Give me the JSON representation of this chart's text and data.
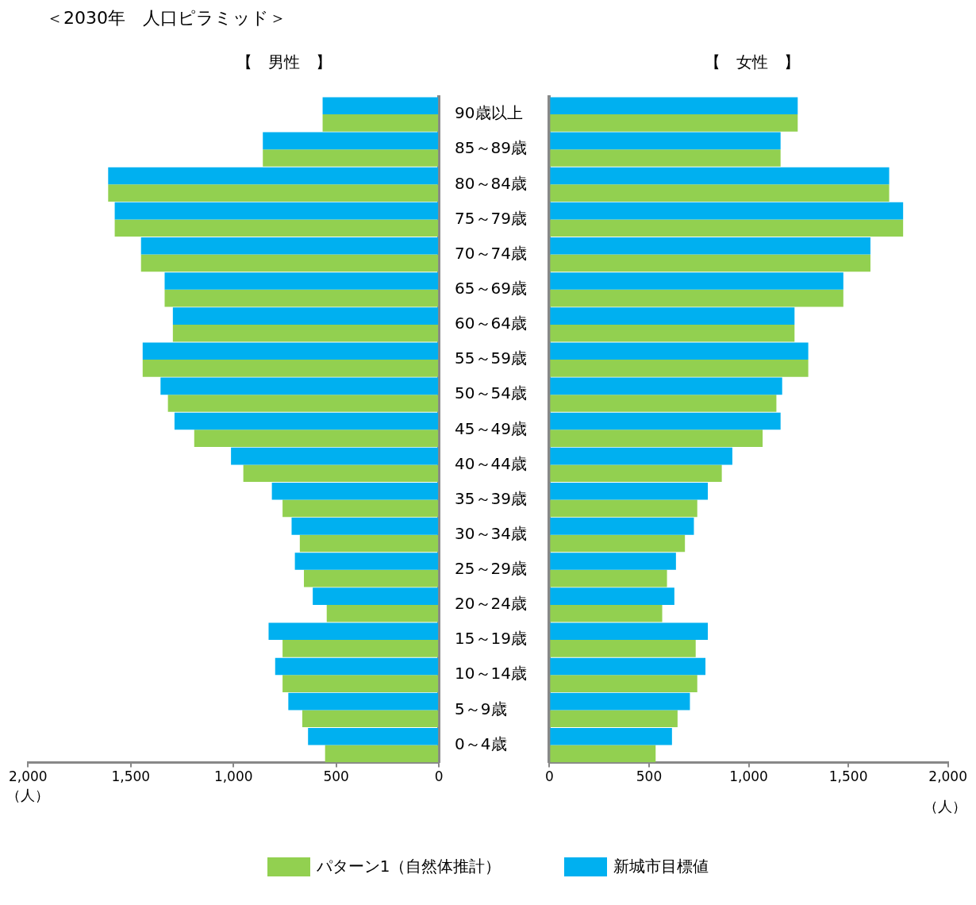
{
  "chart_data": [
    {
      "type": "bar",
      "orientation": "horizontal",
      "title": "【　男性　】",
      "xlabel": "（人）",
      "annotations": [
        "＜2030年　人口ピラミッド＞"
      ],
      "categories": [
        "90歳以上",
        "85～89歳",
        "80～84歳",
        "75～79歳",
        "70～74歳",
        "65～69歳",
        "60～64歳",
        "55～59歳",
        "50～54歳",
        "45～49歳",
        "40～44歳",
        "35～39歳",
        "30～34歳",
        "25～29歳",
        "20～24歳",
        "15～19歳",
        "10～14歳",
        "5～9歳",
        "0～4歳"
      ],
      "series": [
        {
          "name": "パターン1（自然体推計）",
          "color": "#92d050",
          "values": [
            566,
            857,
            1610,
            1578,
            1450,
            1335,
            1295,
            1442,
            1319,
            1191,
            952,
            761,
            677,
            657,
            546,
            761,
            761,
            665,
            554
          ]
        },
        {
          "name": "新城市目標値",
          "color": "#00b0f0",
          "values": [
            566,
            857,
            1610,
            1578,
            1450,
            1335,
            1295,
            1442,
            1355,
            1287,
            1012,
            813,
            717,
            701,
            614,
            829,
            797,
            733,
            637
          ]
        }
      ],
      "xlim": [
        2000,
        0
      ],
      "xticks": [
        {
          "value": 2000,
          "label": "2,000"
        },
        {
          "value": 1500,
          "label": "1,500"
        },
        {
          "value": 1000,
          "label": "1,000"
        },
        {
          "value": 500,
          "label": "500"
        },
        {
          "value": 0,
          "label": "0"
        }
      ],
      "grid": false,
      "legend": "bottom"
    },
    {
      "type": "bar",
      "orientation": "horizontal",
      "title": "【　女性　】",
      "xlabel": "（人）",
      "categories": [
        null,
        null,
        null,
        null,
        null,
        null,
        null,
        null,
        null,
        null,
        null,
        null,
        null,
        null,
        null,
        null,
        null,
        null,
        null
      ],
      "series": [
        {
          "color": "#92d050",
          "values": [
            1246,
            1160,
            1705,
            1775,
            1611,
            1475,
            1230,
            1299,
            1139,
            1070,
            865,
            742,
            680,
            590,
            566,
            734,
            742,
            643,
            533
          ]
        },
        {
          "color": "#00b0f0",
          "values": [
            1246,
            1160,
            1705,
            1775,
            1611,
            1475,
            1230,
            1299,
            1168,
            1160,
            918,
            795,
            725,
            635,
            627,
            795,
            783,
            705,
            615
          ]
        }
      ],
      "xlim": [
        0,
        2000
      ],
      "xticks": [
        {
          "value": 0,
          "label": "0"
        },
        {
          "value": 500,
          "label": "500"
        },
        {
          "value": 1000,
          "label": "1,000"
        },
        {
          "value": 1500,
          "label": "1,500"
        },
        {
          "value": 2000,
          "label": "2,000"
        }
      ],
      "grid": false,
      "tick_labels": "x"
    }
  ]
}
